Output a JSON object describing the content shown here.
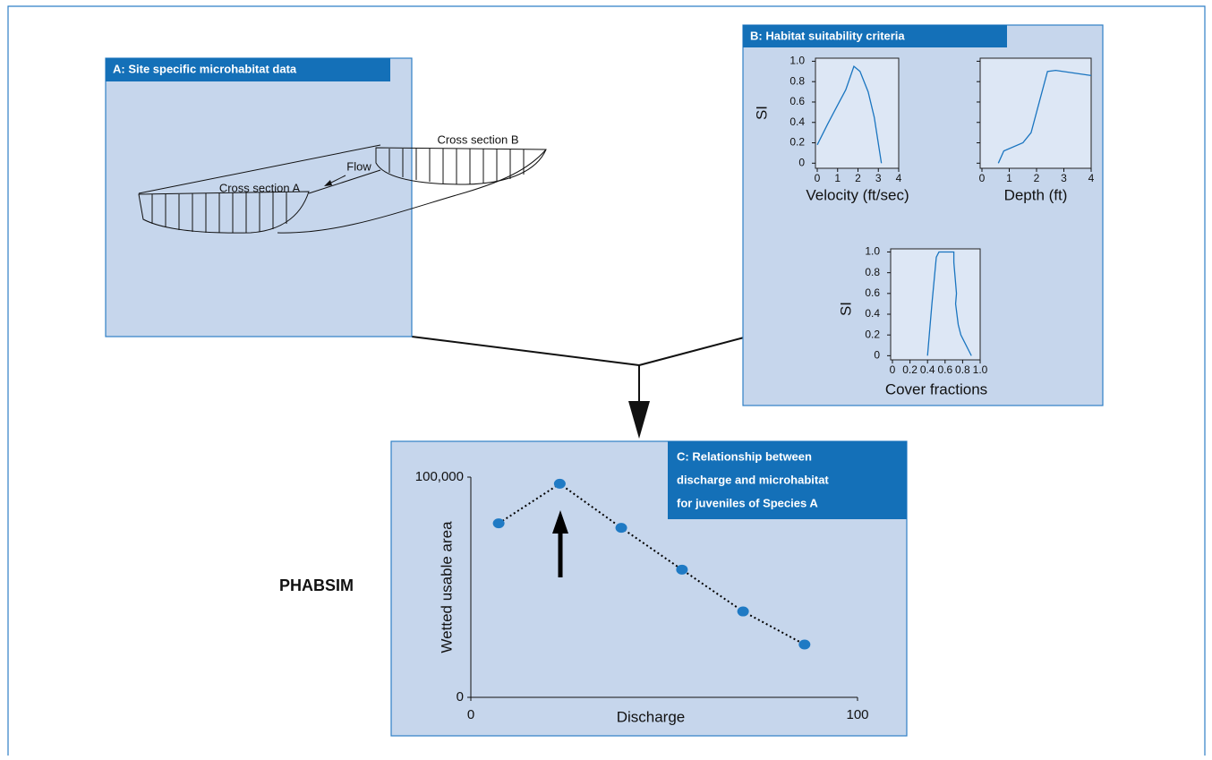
{
  "panels": {
    "a": {
      "title": "A: Site specific microhabitat data",
      "cross_section_a": "Cross section A",
      "cross_section_b": "Cross section B",
      "flow": "Flow"
    },
    "b": {
      "title": "B: Habitat suitability criteria"
    },
    "c": {
      "title": [
        "C: Relationship between",
        "discharge and microhabitat",
        "for juveniles of Species A"
      ]
    }
  },
  "method_label": "PHABSIM",
  "chart_data": [
    {
      "type": "line",
      "x_label": "Velocity (ft/sec)",
      "y_label": "SI",
      "color": "#1a75c0",
      "x": [
        0,
        0.5,
        1.0,
        1.4,
        1.8,
        2.1,
        2.5,
        2.8,
        3.15
      ],
      "values": [
        0.18,
        0.38,
        0.57,
        0.72,
        0.95,
        0.9,
        0.7,
        0.45,
        0
      ],
      "xlim": [
        0,
        4
      ],
      "ylim": [
        -0.05,
        1.03
      ],
      "xticks": [
        0,
        1,
        2,
        3,
        4
      ],
      "yticks": [
        0,
        0.2,
        0.4,
        0.6,
        0.8,
        {
          "value": 1,
          "label": "1.0"
        }
      ]
    },
    {
      "type": "line",
      "x_label": "Depth (ft)",
      "color": "#1a75c0",
      "x": [
        0.6,
        0.8,
        1.5,
        1.8,
        2.1,
        2.4,
        2.7,
        4
      ],
      "values": [
        0,
        0.12,
        0.2,
        0.3,
        0.6,
        0.9,
        0.91,
        0.86
      ],
      "xlim": [
        0,
        4
      ],
      "ylim": [
        -0.05,
        1.03
      ],
      "xticks": [
        0,
        1,
        2,
        3,
        4
      ],
      "yticks": [
        0,
        0.2,
        0.4,
        0.6,
        0.8,
        1
      ],
      "show_ytick_labels": false
    },
    {
      "type": "line",
      "x_label": "Cover fractions",
      "y_label": "SI",
      "color": "#1a75c0",
      "x": [
        0.4,
        0.45,
        0.5,
        0.53,
        0.7,
        0.7,
        0.71,
        0.72,
        0.73,
        0.72,
        0.75,
        0.78,
        0.9
      ],
      "values": [
        0,
        0.5,
        0.95,
        1.0,
        1.0,
        0.9,
        0.8,
        0.7,
        0.6,
        0.5,
        0.3,
        0.2,
        0
      ],
      "xlim": [
        0,
        1
      ],
      "ylim": [
        -0.04,
        1.03
      ],
      "xticks": [
        0,
        0.2,
        0.4,
        0.6,
        0.8,
        {
          "value": 1,
          "label": "1.0"
        }
      ],
      "yticks": [
        0,
        0.2,
        0.4,
        0.6,
        0.8,
        {
          "value": 1,
          "label": "1.0"
        }
      ]
    },
    {
      "type": "line",
      "x_label": "Discharge",
      "y_label": "Wetted usable area",
      "color": "#1f7ac4",
      "line_color": "#000000",
      "line_style": "dotted",
      "markers": true,
      "x": [
        7.2,
        23,
        38.9,
        54.6,
        70.4,
        86.3
      ],
      "values": [
        79000,
        97000,
        77000,
        58000,
        39000,
        24000
      ],
      "xlim": [
        0,
        100
      ],
      "ylim": [
        0,
        100000
      ],
      "xticks": [
        0,
        100
      ],
      "yticks": [
        0,
        {
          "value": 100000,
          "label": "100,000"
        }
      ]
    }
  ]
}
